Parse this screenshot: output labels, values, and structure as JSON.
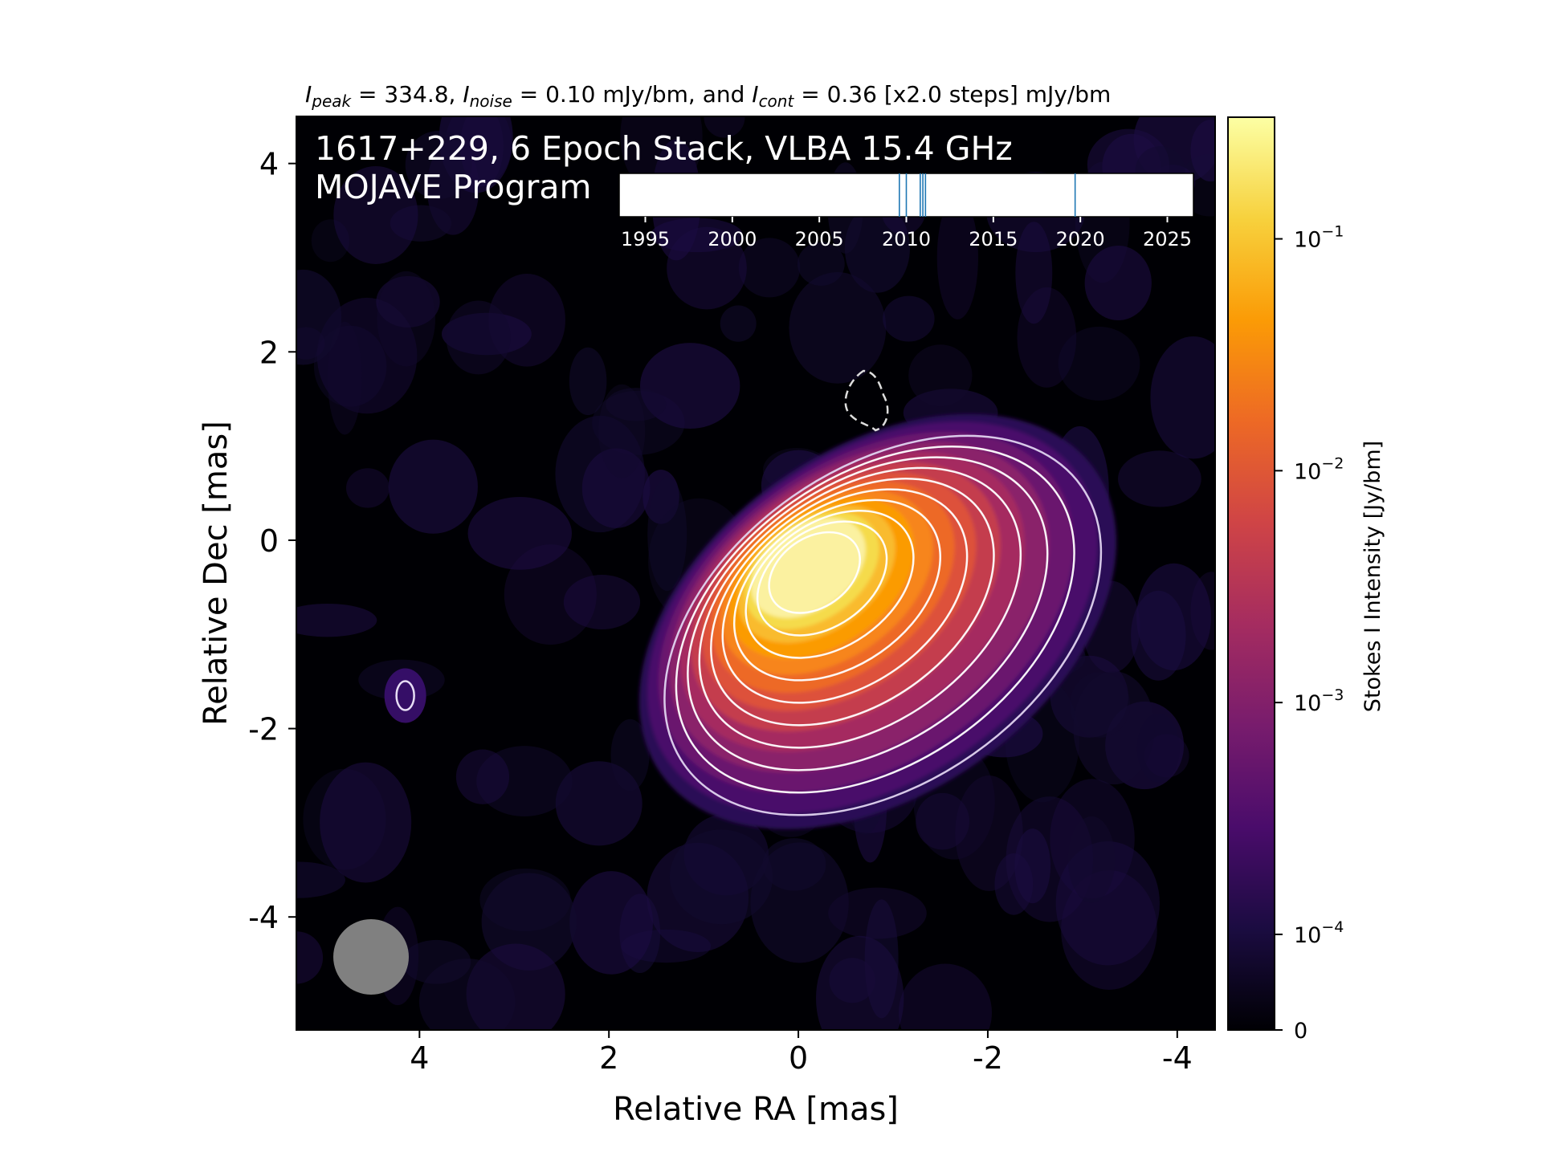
{
  "chart_data": {
    "type": "heatmap",
    "header": {
      "peak_sym": "I",
      "peak_sub": "peak",
      "peak_val": " = 334.8, ",
      "noise_sym": "I",
      "noise_sub": "noise",
      "noise_val": " = 0.10 mJy/bm, and ",
      "cont_sym": "I",
      "cont_sub": "cont",
      "cont_val": " = 0.36 [x2.0 steps] mJy/bm"
    },
    "title_line1": "1617+229, 6 Epoch Stack, VLBA 15.4 GHz",
    "title_line2": "MOJAVE Program",
    "xlabel": "Relative RA [mas]",
    "ylabel": "Relative Dec [mas]",
    "xlim": [
      5.3,
      -4.4
    ],
    "ylim": [
      -5.2,
      4.5
    ],
    "xticks": [
      4,
      2,
      0,
      -2,
      -4
    ],
    "yticks": [
      4,
      2,
      0,
      -2,
      -4
    ],
    "xtick_labels": [
      "4",
      "2",
      "0",
      "-2",
      "-4"
    ],
    "ytick_labels": [
      "4",
      "2",
      "0",
      "-2",
      "-4"
    ],
    "colorbar": {
      "label": "Stokes I Intensity [Jy/bm]",
      "ticks": [
        {
          "base": "10",
          "exp": "−1",
          "value": 0.1
        },
        {
          "base": "10",
          "exp": "−2",
          "value": 0.01
        },
        {
          "base": "10",
          "exp": "−3",
          "value": 0.001
        },
        {
          "base": "10",
          "exp": "−4",
          "value": 0.0001
        },
        {
          "base": "0",
          "exp": "",
          "value": 0
        }
      ],
      "colormap": "inferno",
      "scale": "log",
      "vmax": 0.3348
    },
    "source": {
      "core_ra": -0.05,
      "core_dec": -0.25,
      "jet_pa_deg": 225,
      "contour_levels_mJy": [
        0.36,
        0.72,
        1.44,
        2.88,
        5.76,
        11.52,
        23.04,
        46.08,
        92.16,
        184.32
      ],
      "negative_contour": {
        "ra": -0.7,
        "dec": 1.5
      },
      "feature": {
        "ra": 4.15,
        "dec": -1.65
      }
    },
    "beam": {
      "ra": 4.5,
      "dec": -4.4,
      "major_mas": 0.8,
      "minor_mas": 0.8,
      "color": "#808080"
    },
    "epoch_timeline": {
      "xlim": [
        1993.5,
        2026.5
      ],
      "ticks": [
        1995,
        2000,
        2005,
        2010,
        2015,
        2020,
        2025
      ],
      "tick_labels": [
        "1995",
        "2000",
        "2005",
        "2010",
        "2015",
        "2020",
        "2025"
      ],
      "epochs": [
        2009.6,
        2010.0,
        2010.8,
        2010.95,
        2011.1,
        2019.7
      ],
      "epoch_color": "#1f77b4"
    }
  }
}
